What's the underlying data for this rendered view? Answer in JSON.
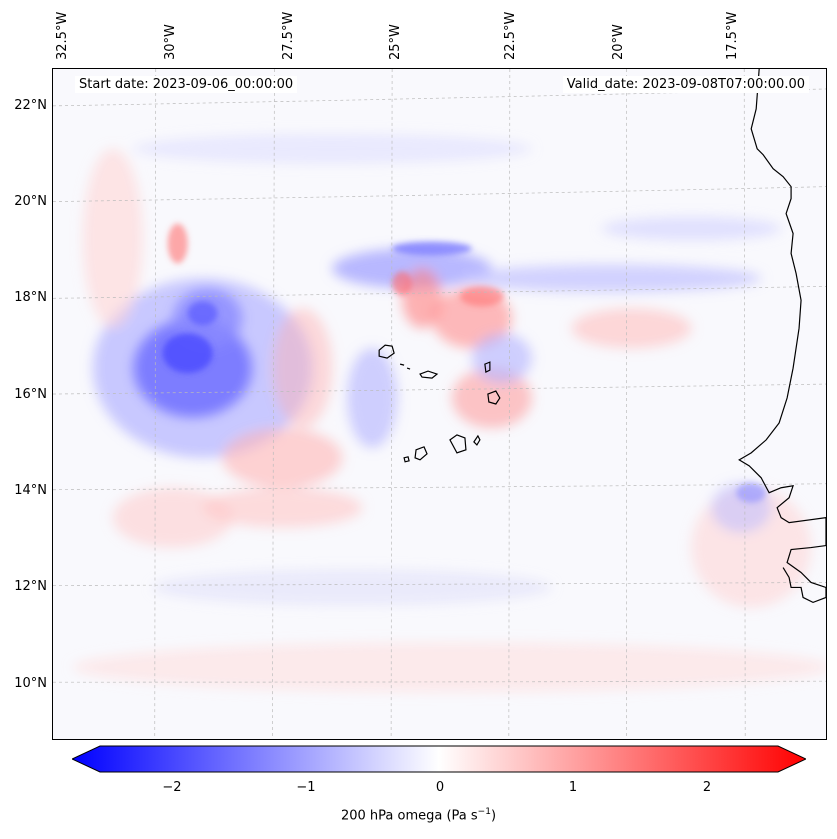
{
  "header": {
    "start_date": "Start date: 2023-09-06_00:00:00",
    "valid_date": "Valid_date: 2023-09-08T07:00:00.00"
  },
  "axes": {
    "lat_labels": [
      "22°N",
      "20°N",
      "18°N",
      "16°N",
      "14°N",
      "12°N",
      "10°N"
    ],
    "lon_labels": [
      "32.5°W",
      "30°W",
      "27.5°W",
      "25°W",
      "22.5°W",
      "20°W",
      "17.5°W"
    ]
  },
  "colorbar": {
    "ticks": [
      "−2",
      "−1",
      "0",
      "1",
      "2"
    ],
    "label": "200 hPa omega (Pa s",
    "label_sup": "−1",
    "label_end": ")",
    "min": -2.6,
    "max": 2.6,
    "neg_color": "#0000ff",
    "mid_color": "#ffffff",
    "pos_color": "#ff0000"
  },
  "field": {
    "description_variable": "omega",
    "level_hpa": 200
  }
}
